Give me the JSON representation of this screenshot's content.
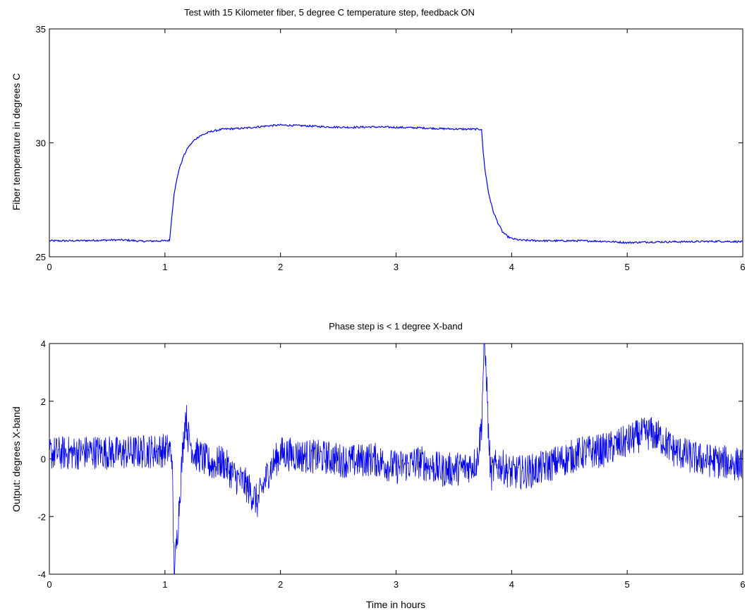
{
  "chart_data": [
    {
      "type": "line",
      "title": "Test with 15 Kilometer fiber, 5 degree C temperature step, feedback ON",
      "xlabel": "",
      "ylabel": "Fiber temperature in degrees C",
      "xlim": [
        0,
        6
      ],
      "ylim": [
        25,
        35
      ],
      "xticks": [
        "0",
        "1",
        "2",
        "3",
        "4",
        "5",
        "6"
      ],
      "yticks": [
        "25",
        "30",
        "35"
      ],
      "grid": false,
      "legend": "none",
      "color": "#0000ee",
      "x": [
        0,
        0.2,
        0.4,
        0.6,
        0.7,
        0.8,
        1.0,
        1.04,
        1.06,
        1.08,
        1.12,
        1.16,
        1.2,
        1.25,
        1.3,
        1.35,
        1.4,
        1.5,
        1.6,
        1.7,
        1.8,
        1.9,
        2.0,
        2.2,
        2.4,
        2.6,
        2.8,
        3.0,
        3.2,
        3.4,
        3.6,
        3.74,
        3.75,
        3.77,
        3.8,
        3.84,
        3.88,
        3.92,
        3.96,
        4.0,
        4.05,
        4.1,
        4.3,
        4.6,
        4.8,
        5.0,
        5.2,
        5.5,
        5.8,
        6.0
      ],
      "y": [
        25.7,
        25.7,
        25.72,
        25.74,
        25.72,
        25.68,
        25.7,
        25.72,
        26.8,
        27.8,
        28.8,
        29.4,
        29.8,
        30.1,
        30.3,
        30.4,
        30.5,
        30.6,
        30.62,
        30.65,
        30.7,
        30.75,
        30.78,
        30.75,
        30.7,
        30.68,
        30.7,
        30.68,
        30.66,
        30.62,
        30.6,
        30.6,
        29.8,
        28.8,
        27.8,
        27.0,
        26.5,
        26.1,
        25.9,
        25.8,
        25.75,
        25.72,
        25.7,
        25.7,
        25.68,
        25.62,
        25.65,
        25.66,
        25.68,
        25.66
      ]
    },
    {
      "type": "line",
      "title": "Phase step is < 1 degree X-band",
      "xlabel": "Time in hours",
      "ylabel": "Output: degrees X-band",
      "xlim": [
        0,
        6
      ],
      "ylim": [
        -4,
        4
      ],
      "xticks": [
        "0",
        "1",
        "2",
        "3",
        "4",
        "5",
        "6"
      ],
      "yticks": [
        "-4",
        "-2",
        "0",
        "2",
        "4"
      ],
      "grid": false,
      "legend": "none",
      "color": "#0000ee",
      "x": [
        0,
        0.2,
        0.4,
        0.6,
        0.8,
        1.0,
        1.04,
        1.06,
        1.08,
        1.1,
        1.12,
        1.14,
        1.16,
        1.18,
        1.2,
        1.25,
        1.3,
        1.4,
        1.5,
        1.6,
        1.7,
        1.75,
        1.8,
        1.9,
        2.0,
        2.2,
        2.4,
        2.6,
        2.8,
        3.0,
        3.2,
        3.4,
        3.6,
        3.7,
        3.74,
        3.76,
        3.78,
        3.8,
        3.82,
        3.85,
        3.9,
        4.0,
        4.2,
        4.4,
        4.6,
        4.8,
        5.0,
        5.1,
        5.2,
        5.3,
        5.4,
        5.6,
        5.8,
        6.0
      ],
      "y": [
        0.2,
        0.2,
        0.25,
        0.2,
        0.25,
        0.3,
        0.3,
        0.2,
        -4,
        -3,
        -1.8,
        -0.5,
        0.6,
        1.6,
        0.8,
        0.2,
        0.1,
        -0.2,
        -0.1,
        -0.6,
        -0.9,
        -1.2,
        -1.5,
        -0.4,
        0.2,
        0.1,
        0.05,
        -0.1,
        0.0,
        -0.3,
        -0.1,
        -0.4,
        -0.3,
        -0.1,
        1.2,
        3.8,
        3.2,
        0.8,
        -0.6,
        -0.3,
        -0.2,
        -0.5,
        -0.4,
        -0.1,
        0.2,
        0.3,
        0.6,
        0.8,
        0.9,
        0.7,
        0.3,
        0.0,
        -0.1,
        -0.2
      ],
      "noise_amplitude": 0.6
    }
  ]
}
